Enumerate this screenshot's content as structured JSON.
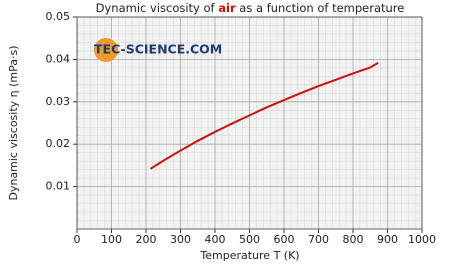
{
  "chart_data": {
    "type": "line",
    "title": {
      "before": "Dynamic viscosity of ",
      "highlight": "air",
      "after": " as a function of temperature"
    },
    "watermark": "TEC-SCIENCE.COM",
    "xlabel": "Temperature T (K)",
    "ylabel": "Dynamic viscosity η (mPa·s)",
    "x": [
      213,
      250,
      300,
      350,
      400,
      450,
      500,
      550,
      600,
      650,
      700,
      750,
      800,
      850,
      873
    ],
    "series": [
      {
        "color": "#cc1111",
        "values": [
          0.0142,
          0.0161,
          0.0185,
          0.0208,
          0.0229,
          0.0249,
          0.0268,
          0.0287,
          0.0304,
          0.0321,
          0.0337,
          0.0352,
          0.0367,
          0.0381,
          0.0392
        ]
      }
    ],
    "xlim": [
      0,
      1000
    ],
    "xticks": [
      0,
      100,
      200,
      300,
      400,
      500,
      600,
      700,
      800,
      900,
      1000
    ],
    "ylim": [
      0,
      0.05
    ],
    "yticks": [
      0.01,
      0.02,
      0.03,
      0.04,
      0.05
    ],
    "grid": true,
    "minor_grid": 5
  }
}
